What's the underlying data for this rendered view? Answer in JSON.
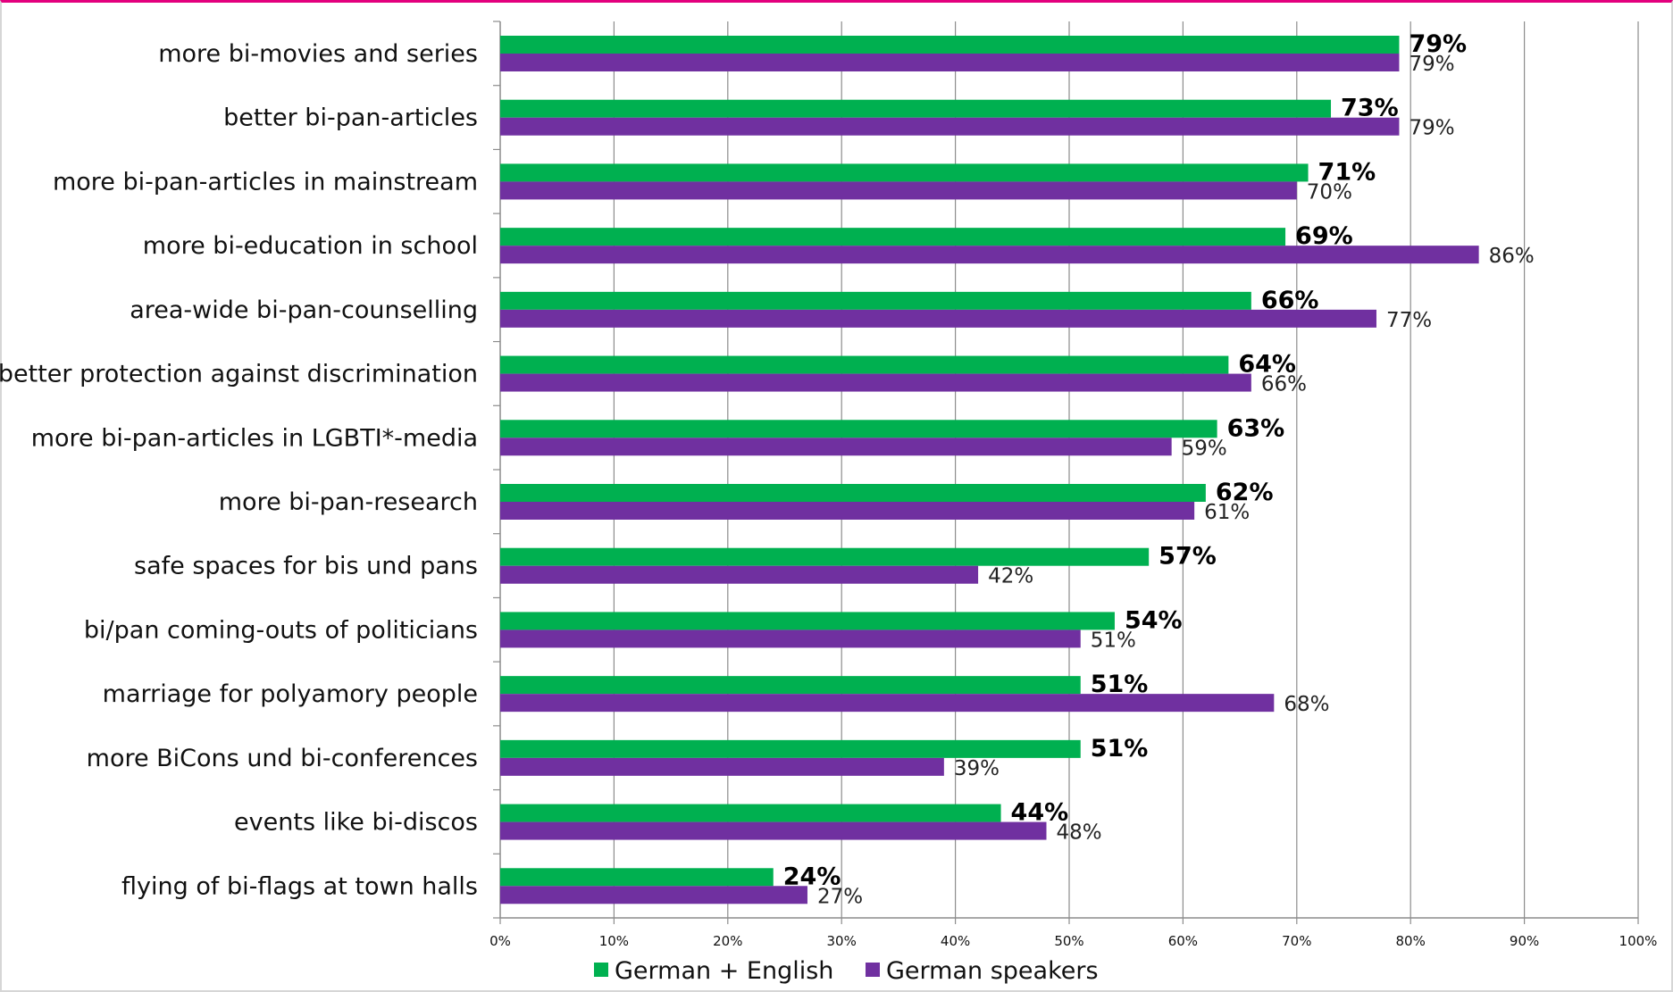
{
  "chart_data": {
    "type": "bar",
    "orientation": "horizontal",
    "categories": [
      "more bi-movies and series",
      "better bi-pan-articles",
      "more bi-pan-articles in mainstream",
      "more bi-education in school",
      "area-wide bi-pan-counselling",
      "better protection against discrimination",
      "more bi-pan-articles in LGBTI*-media",
      "more bi-pan-research",
      "safe spaces for bis und pans",
      "bi/pan coming-outs of politicians",
      "marriage for polyamory people",
      "more BiCons und bi-conferences",
      "events like bi-discos",
      "flying of bi-flags at town halls"
    ],
    "series": [
      {
        "name": "German + English",
        "color": "#00b050",
        "values": [
          79,
          73,
          71,
          69,
          66,
          64,
          63,
          62,
          57,
          54,
          51,
          51,
          44,
          24
        ],
        "labels": [
          "79%",
          "73%",
          "71%",
          "69%",
          "66%",
          "64%",
          "63%",
          "62%",
          "57%",
          "54%",
          "51%",
          "51%",
          "44%",
          "24%"
        ]
      },
      {
        "name": "German speakers",
        "color": "#7030a0",
        "values": [
          79,
          79,
          70,
          86,
          77,
          66,
          59,
          61,
          42,
          51,
          68,
          39,
          48,
          27
        ],
        "labels": [
          "79%",
          "79%",
          "70%",
          "86%",
          "77%",
          "66%",
          "59%",
          "61%",
          "42%",
          "51%",
          "68%",
          "39%",
          "48%",
          "27%"
        ]
      }
    ],
    "xlim": [
      0,
      100
    ],
    "xticks": [
      "0%",
      "10%",
      "20%",
      "30%",
      "40%",
      "50%",
      "60%",
      "70%",
      "80%",
      "90%",
      "100%"
    ],
    "grid": "vertical",
    "legend": "bottom",
    "title": "",
    "xlabel": "",
    "ylabel": ""
  }
}
